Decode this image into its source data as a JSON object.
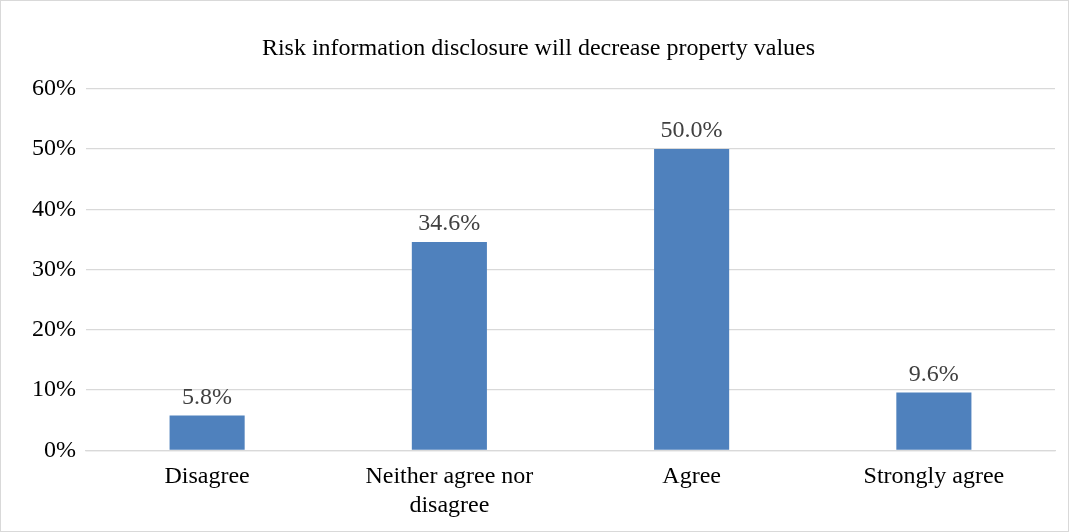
{
  "chart_data": {
    "type": "bar",
    "title": "Risk information disclosure will decrease property values",
    "categories": [
      "Disagree",
      "Neither agree nor disagree",
      "Agree",
      "Strongly agree"
    ],
    "values": [
      5.8,
      34.6,
      50.0,
      9.6
    ],
    "value_labels": [
      "5.8%",
      "34.6%",
      "50.0%",
      "9.6%"
    ],
    "color": "#4f81bd",
    "ylim": [
      0,
      60
    ],
    "yticks": [
      {
        "value": 0,
        "label": "0%"
      },
      {
        "value": 10,
        "label": "10%"
      },
      {
        "value": 20,
        "label": "20%"
      },
      {
        "value": 30,
        "label": "30%"
      },
      {
        "value": 40,
        "label": "40%"
      },
      {
        "value": 50,
        "label": "50%"
      },
      {
        "value": 60,
        "label": "60%"
      }
    ],
    "grid": "y",
    "legend": false
  }
}
